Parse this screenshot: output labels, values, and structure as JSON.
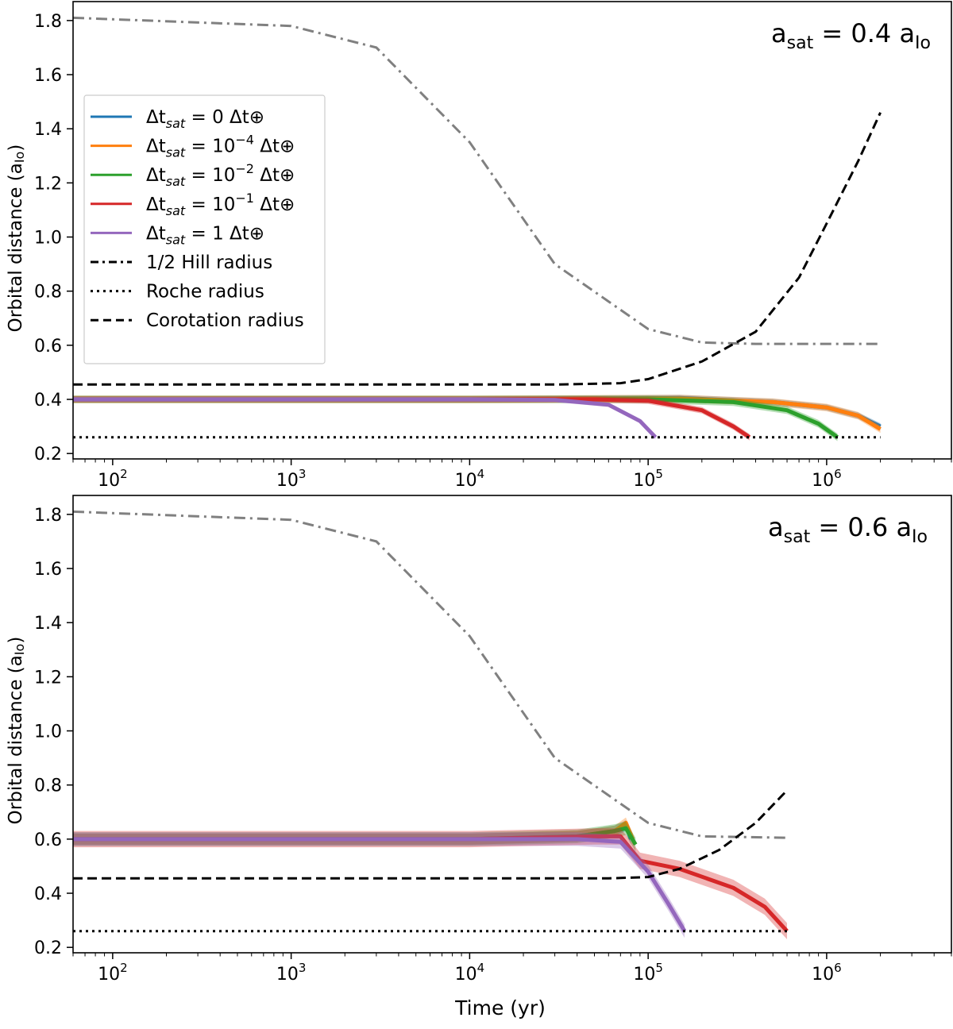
{
  "figure": {
    "xlabel": "Time (yr)",
    "ylabel_main": "Orbital distance (a",
    "ylabel_sub": "Io",
    "ylabel_close": ")"
  },
  "legend": {
    "items": [
      {
        "series_id": "dt0",
        "prefix": "Δt",
        "sub": "sat",
        "rel": " = 0 Δt",
        "exp": "",
        "suffix": "⊕",
        "color": "#1f77b4"
      },
      {
        "series_id": "dt4",
        "prefix": "Δt",
        "sub": "sat",
        "rel": " = 10",
        "exp": "−4",
        "suffix": " Δt⊕",
        "color": "#ff7f0e"
      },
      {
        "series_id": "dt2",
        "prefix": "Δt",
        "sub": "sat",
        "rel": " = 10",
        "exp": "−2",
        "suffix": " Δt⊕",
        "color": "#2ca02c"
      },
      {
        "series_id": "dt1",
        "prefix": "Δt",
        "sub": "sat",
        "rel": " = 10",
        "exp": "−1",
        "suffix": " Δt⊕",
        "color": "#d62728"
      },
      {
        "series_id": "dt10",
        "prefix": "Δt",
        "sub": "sat",
        "rel": " = 1 Δt",
        "exp": "",
        "suffix": "⊕",
        "color": "#9467bd"
      }
    ],
    "lines": [
      {
        "label": "1/2 Hill radius",
        "style": "dashdot"
      },
      {
        "label": "Roche radius",
        "style": "dotted"
      },
      {
        "label": "Corotation radius",
        "style": "dashed"
      }
    ]
  },
  "chart_data": [
    {
      "type": "line",
      "panel": "top",
      "annotation": {
        "base": "a",
        "sub": "sat",
        "mid": " = 0.4 a",
        "sub2": "Io"
      },
      "xscale": "log",
      "xlim": [
        60,
        5000000
      ],
      "ylim": [
        0.18,
        1.87
      ],
      "yticks": [
        0.2,
        0.4,
        0.6,
        0.8,
        1.0,
        1.2,
        1.4,
        1.6,
        1.8
      ],
      "xticks": [
        {
          "value": 100,
          "exp": "2"
        },
        {
          "value": 1000,
          "exp": "3"
        },
        {
          "value": 10000,
          "exp": "4"
        },
        {
          "value": 100000,
          "exp": "5"
        },
        {
          "value": 1000000,
          "exp": "6"
        }
      ],
      "hill_half": {
        "x": [
          60,
          1000,
          3000,
          10000,
          30000,
          100000,
          200000,
          400000,
          2000000
        ],
        "y": [
          1.81,
          1.78,
          1.7,
          1.35,
          0.9,
          0.66,
          0.61,
          0.605,
          0.605
        ]
      },
      "roche": {
        "x": [
          60,
          2000000
        ],
        "y": [
          0.26,
          0.26
        ]
      },
      "corotation": {
        "x": [
          60,
          30000,
          70000,
          100000,
          200000,
          400000,
          700000,
          1000000,
          1500000,
          2000000
        ],
        "y": [
          0.455,
          0.455,
          0.46,
          0.475,
          0.54,
          0.65,
          0.85,
          1.05,
          1.28,
          1.46
        ]
      },
      "series": [
        {
          "id": "dt0",
          "x": [
            60,
            10000,
            50000,
            150000,
            500000,
            1000000,
            1500000,
            2000000
          ],
          "y": [
            0.4,
            0.4,
            0.403,
            0.405,
            0.39,
            0.37,
            0.34,
            0.3
          ],
          "band": 0.012
        },
        {
          "id": "dt4",
          "x": [
            60,
            10000,
            50000,
            150000,
            500000,
            1000000,
            1500000,
            2000000
          ],
          "y": [
            0.4,
            0.4,
            0.402,
            0.403,
            0.39,
            0.37,
            0.34,
            0.29
          ],
          "band": 0.014
        },
        {
          "id": "dt2",
          "x": [
            60,
            10000,
            50000,
            100000,
            300000,
            600000,
            900000,
            1150000
          ],
          "y": [
            0.4,
            0.4,
            0.4,
            0.4,
            0.39,
            0.36,
            0.31,
            0.26
          ],
          "band": 0.014
        },
        {
          "id": "dt1",
          "x": [
            60,
            10000,
            50000,
            100000,
            200000,
            300000,
            370000
          ],
          "y": [
            0.4,
            0.4,
            0.4,
            0.395,
            0.36,
            0.3,
            0.26
          ],
          "band": 0.012
        },
        {
          "id": "dt10",
          "x": [
            60,
            10000,
            30000,
            60000,
            90000,
            110000
          ],
          "y": [
            0.4,
            0.4,
            0.398,
            0.38,
            0.32,
            0.26
          ],
          "band": 0.008
        }
      ]
    },
    {
      "type": "line",
      "panel": "bottom",
      "annotation": {
        "base": "a",
        "sub": "sat",
        "mid": " = 0.6 a",
        "sub2": "Io"
      },
      "xscale": "log",
      "xlim": [
        60,
        5000000
      ],
      "ylim": [
        0.18,
        1.87
      ],
      "yticks": [
        0.2,
        0.4,
        0.6,
        0.8,
        1.0,
        1.2,
        1.4,
        1.6,
        1.8
      ],
      "xticks": [
        {
          "value": 100,
          "exp": "2"
        },
        {
          "value": 1000,
          "exp": "3"
        },
        {
          "value": 10000,
          "exp": "4"
        },
        {
          "value": 100000,
          "exp": "5"
        },
        {
          "value": 1000000,
          "exp": "6"
        }
      ],
      "hill_half": {
        "x": [
          60,
          1000,
          3000,
          10000,
          30000,
          100000,
          200000,
          600000
        ],
        "y": [
          1.81,
          1.78,
          1.7,
          1.35,
          0.9,
          0.66,
          0.61,
          0.605
        ]
      },
      "roche": {
        "x": [
          60,
          600000
        ],
        "y": [
          0.26,
          0.26
        ]
      },
      "corotation": {
        "x": [
          60,
          60000,
          100000,
          150000,
          250000,
          400000,
          600000
        ],
        "y": [
          0.455,
          0.455,
          0.46,
          0.49,
          0.56,
          0.66,
          0.78
        ]
      },
      "series": [
        {
          "id": "dt0",
          "x": [
            60,
            10000,
            40000,
            65000,
            75000,
            80000
          ],
          "y": [
            0.6,
            0.6,
            0.61,
            0.63,
            0.65,
            0.6
          ],
          "band": 0.02
        },
        {
          "id": "dt4",
          "x": [
            60,
            10000,
            40000,
            65000,
            75000,
            82000
          ],
          "y": [
            0.6,
            0.6,
            0.61,
            0.63,
            0.66,
            0.6
          ],
          "band": 0.02
        },
        {
          "id": "dt2",
          "x": [
            60,
            10000,
            40000,
            65000,
            75000,
            85000
          ],
          "y": [
            0.6,
            0.6,
            0.61,
            0.63,
            0.64,
            0.58
          ],
          "band": 0.025
        },
        {
          "id": "dt1",
          "x": [
            60,
            10000,
            50000,
            70000,
            90000,
            150000,
            300000,
            450000,
            600000
          ],
          "y": [
            0.6,
            0.6,
            0.61,
            0.61,
            0.52,
            0.49,
            0.42,
            0.35,
            0.26
          ],
          "band": 0.03
        },
        {
          "id": "dt10",
          "x": [
            60,
            10000,
            40000,
            70000,
            100000,
            130000,
            160000
          ],
          "y": [
            0.6,
            0.6,
            0.6,
            0.59,
            0.48,
            0.36,
            0.26
          ],
          "band": 0.025
        }
      ]
    }
  ]
}
